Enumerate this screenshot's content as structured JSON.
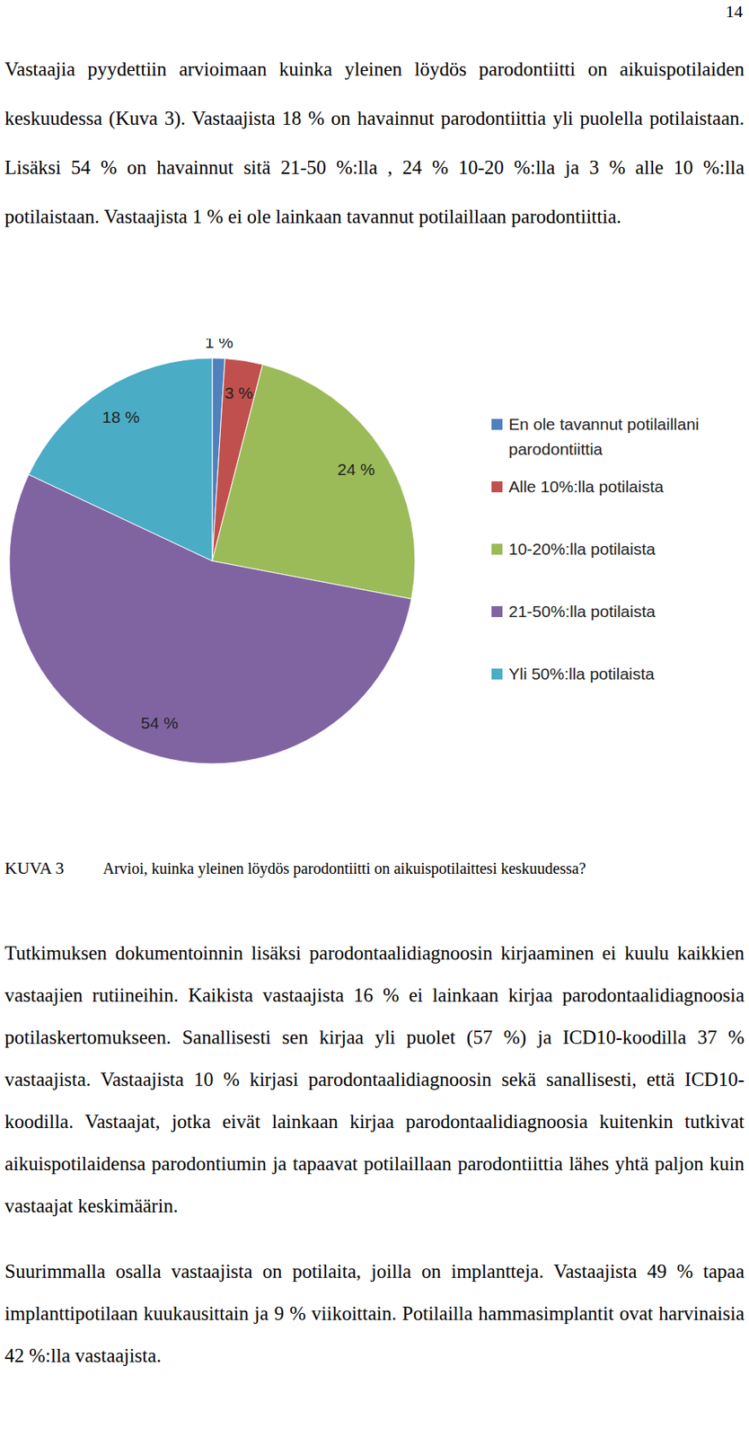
{
  "page_number": "14",
  "paragraphs_before": [
    "Vastaajia pyydettiin arvioimaan kuinka yleinen löydös parodontiitti on aikuispotilaiden keskuudessa (Kuva 3). Vastaajista 18 % on havainnut parodontiittia yli puolella potilaistaan. Lisäksi 54 % on havainnut sitä 21-50 %:lla , 24 % 10-20 %:lla ja 3 % alle 10 %:lla potilaistaan. Vastaajista 1 % ei ole lainkaan tavannut potilaillaan parodontiittia."
  ],
  "chart_data": {
    "type": "pie",
    "categories": [
      "En ole tavannut potilaillani parodontiittia",
      "Alle 10%:lla potilaista",
      "10-20%:lla potilaista",
      "21-50%:lla potilaista",
      "Yli 50%:lla potilaista"
    ],
    "values": [
      1,
      3,
      24,
      54,
      18
    ],
    "value_labels": [
      "1 %",
      "3 %",
      "24 %",
      "54 %",
      "18 %"
    ],
    "colors": [
      "#4f81bd",
      "#c0504d",
      "#9bbb59",
      "#8064a2",
      "#4bacc6"
    ],
    "data_labels": true,
    "legend": "right"
  },
  "caption": {
    "label": "KUVA 3",
    "text": "Arvioi, kuinka yleinen löydös parodontiitti on aikuispotilaittesi keskuudessa?"
  },
  "paragraphs_after": [
    "Tutkimuksen dokumentoinnin lisäksi parodontaalidiagnoosin kirjaaminen ei kuulu kaikkien vastaajien rutiineihin. Kaikista vastaajista 16 % ei lainkaan kirjaa parodontaalidiagnoosia potilaskertomukseen. Sanallisesti sen kirjaa yli puolet (57 %) ja ICD10-koodilla 37 % vastaajista. Vastaajista 10 % kirjasi parodontaalidiagnoosin sekä sanallisesti, että ICD10-koodilla. Vastaajat, jotka eivät lainkaan kirjaa parodontaalidiagnoosia kuitenkin tutkivat aikuispotilaidensa parodontiumin ja tapaavat potilaillaan parodontiittia lähes yhtä paljon kuin vastaajat keskimäärin.",
    "Suurimmalla osalla vastaajista on potilaita, joilla on implantteja. Vastaajista 49 % tapaa implanttipotilaan kuukausittain ja 9 % viikoittain. Potilailla hammasimplantit ovat harvinaisia 42 %:lla vastaajista."
  ]
}
